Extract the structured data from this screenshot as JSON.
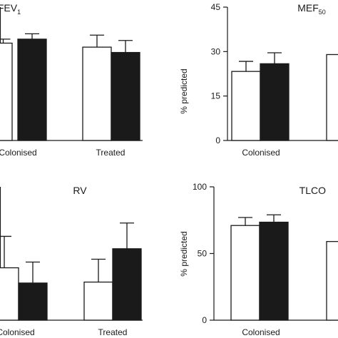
{
  "chart_data": [
    {
      "type": "bar",
      "title": "FEV",
      "title_sub": "1",
      "ylabel": "",
      "categories": [
        "Colonised",
        "Treated"
      ],
      "series": [
        {
          "color": "#ffffff",
          "values": [
            73,
            70
          ],
          "errors": [
            3,
            9
          ]
        },
        {
          "color": "#1a1a1a",
          "values": [
            76,
            66
          ],
          "errors": [
            4,
            9
          ]
        }
      ],
      "ylim": [
        0,
        100
      ],
      "yticks": [],
      "grid": false
    },
    {
      "type": "bar",
      "title": "MEF",
      "title_sub": "50",
      "ylabel": "% predicted",
      "categories": [
        "Colonised",
        "Treated"
      ],
      "series": [
        {
          "color": "#ffffff",
          "values": [
            23.3,
            29
          ],
          "errors": [
            3.4,
            0
          ]
        },
        {
          "color": "#1a1a1a",
          "values": [
            25.9,
            0
          ],
          "errors": [
            3.7,
            0
          ]
        }
      ],
      "ylim": [
        0,
        45
      ],
      "yticks": [
        "0",
        "15",
        "30",
        "45"
      ],
      "grid": false
    },
    {
      "type": "bar",
      "title": "RV",
      "title_sub": "",
      "ylabel": "",
      "categories": [
        "Colonised",
        "Treated"
      ],
      "series": [
        {
          "color": "#ffffff",
          "values": [
            55,
            40
          ],
          "errors": [
            33,
            24
          ]
        },
        {
          "color": "#1a1a1a",
          "values": [
            39,
            75
          ],
          "errors": [
            22,
            27
          ]
        }
      ],
      "ylim": [
        0,
        140
      ],
      "yticks": [],
      "grid": false
    },
    {
      "type": "bar",
      "title": "TLCO",
      "title_sub": "",
      "ylabel": "% predicted",
      "categories": [
        "Colonised",
        "Treated"
      ],
      "series": [
        {
          "color": "#ffffff",
          "values": [
            71,
            59
          ],
          "errors": [
            6,
            0
          ]
        },
        {
          "color": "#1a1a1a",
          "values": [
            73.5,
            0
          ],
          "errors": [
            5.5,
            0
          ]
        }
      ],
      "ylim": [
        0,
        100
      ],
      "yticks": [
        "0",
        "50",
        "100"
      ],
      "grid": false
    }
  ]
}
